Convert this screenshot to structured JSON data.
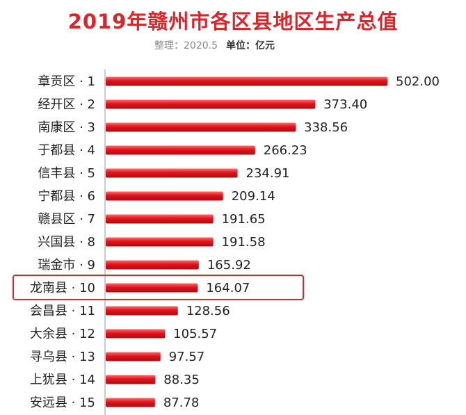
{
  "chart_data": {
    "type": "bar",
    "orientation": "horizontal",
    "title": "2019年赣州市各区县地区生产总值",
    "subtitle": "整理：2020.5",
    "unit_label": "单位：亿元",
    "categories": [
      "章贡区 · 1",
      "经开区 · 2",
      "南康区 · 3",
      "于都县 · 4",
      "信丰县 · 5",
      "宁都县 · 6",
      "赣县区 · 7",
      "兴国县 · 8",
      "瑞金市 · 9",
      "龙南县 · 10",
      "会昌县 · 11",
      "大余县 · 12",
      "寻乌县 · 13",
      "上犹县 · 14",
      "安远县 · 15"
    ],
    "values": [
      502.0,
      373.4,
      338.56,
      266.23,
      234.91,
      209.14,
      191.65,
      191.58,
      165.92,
      164.07,
      128.56,
      105.57,
      97.57,
      88.35,
      87.78
    ],
    "value_labels": [
      "502.00",
      "373.40",
      "338.56",
      "266.23",
      "234.91",
      "209.14",
      "191.65",
      "191.58",
      "165.92",
      "164.07",
      "128.56",
      "105.57",
      "97.57",
      "88.35",
      "87.78"
    ],
    "highlighted_index": 9,
    "bar_color": "#e0141b",
    "bar_highlight": "#ff7a7a",
    "grid": false
  }
}
